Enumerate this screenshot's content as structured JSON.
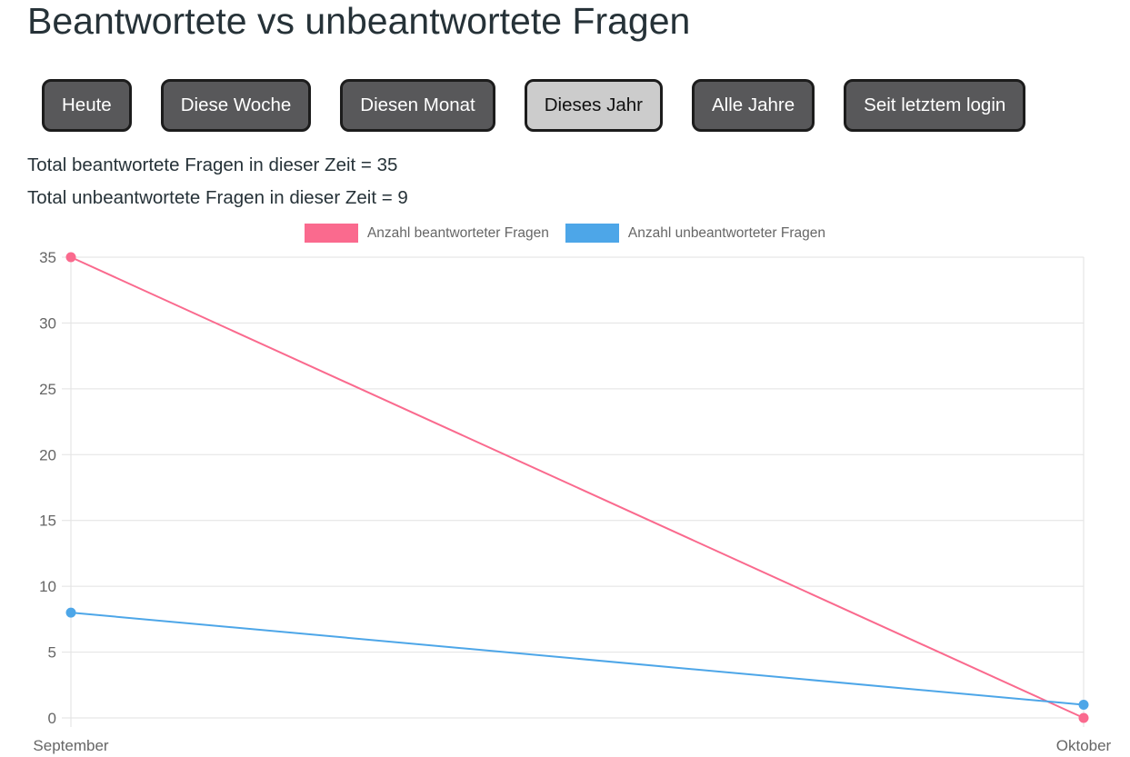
{
  "page": {
    "title": "Beantwortete vs unbeantwortete Fragen"
  },
  "filters": {
    "items": [
      {
        "label": "Heute",
        "active": false
      },
      {
        "label": "Diese Woche",
        "active": false
      },
      {
        "label": "Diesen Monat",
        "active": false
      },
      {
        "label": "Dieses Jahr",
        "active": true
      },
      {
        "label": "Alle Jahre",
        "active": false
      },
      {
        "label": "Seit letztem login",
        "active": false
      }
    ]
  },
  "totals": {
    "answered": "Total beantwortete Fragen in dieser Zeit = 35",
    "unanswered": "Total unbeantwortete Fragen in dieser Zeit = 9"
  },
  "chart_data": {
    "type": "line",
    "categories": [
      "September",
      "Oktober"
    ],
    "series": [
      {
        "name": "Anzahl beantworteter Fragen",
        "color": "#fa6a8e",
        "values": [
          35,
          0
        ]
      },
      {
        "name": "Anzahl unbeantworteter Fragen",
        "color": "#4da6e8",
        "values": [
          8,
          1
        ]
      }
    ],
    "ylim": [
      0,
      35
    ],
    "yticks": [
      0,
      5,
      10,
      15,
      20,
      25,
      30,
      35
    ],
    "grid": true,
    "legend_position": "top",
    "axis_text_color": "#666666",
    "gridline_color": "#e2e2e2"
  }
}
